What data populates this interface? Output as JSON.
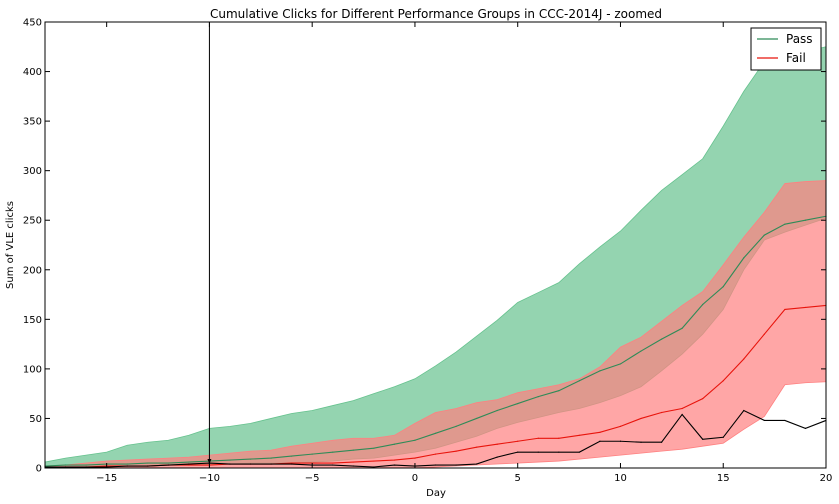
{
  "chart_data": {
    "type": "line",
    "title": "Cumulative Clicks for Different Performance Groups in CCC-2014J - zoomed",
    "xlabel": "Day",
    "ylabel": "Sum of VLE clicks",
    "xlim": [
      -18,
      20
    ],
    "ylim": [
      0,
      450
    ],
    "xticks": [
      -15,
      -10,
      -5,
      0,
      5,
      10,
      15,
      20
    ],
    "xtick_labels": [
      "−15",
      "−10",
      "−5",
      "0",
      "5",
      "10",
      "15",
      "20"
    ],
    "yticks": [
      0,
      50,
      100,
      150,
      200,
      250,
      300,
      350,
      400,
      450
    ],
    "ytick_labels": [
      "0",
      "50",
      "100",
      "150",
      "200",
      "250",
      "300",
      "350",
      "400",
      "450"
    ],
    "grid": false,
    "legend_position": "top-right",
    "vertical_line_x": -10,
    "series": [
      {
        "name": "Pass",
        "color": "#2e8b57",
        "band_color": "#66c28e",
        "x": [
          -18,
          -17,
          -16,
          -15,
          -14,
          -13,
          -12,
          -11,
          -10,
          -9,
          -8,
          -7,
          -6,
          -5,
          -4,
          -3,
          -2,
          -1,
          0,
          1,
          2,
          3,
          4,
          5,
          6,
          7,
          8,
          9,
          10,
          11,
          12,
          13,
          14,
          15,
          16,
          17,
          18,
          19,
          20
        ],
        "values": [
          2,
          3,
          3,
          4,
          4,
          5,
          5,
          6,
          7,
          8,
          9,
          10,
          12,
          14,
          16,
          18,
          20,
          24,
          28,
          35,
          42,
          50,
          58,
          65,
          72,
          78,
          88,
          98,
          105,
          118,
          130,
          141,
          165,
          183,
          212,
          235,
          246,
          250,
          254
        ],
        "upper": [
          6,
          10,
          13,
          16,
          23,
          26,
          28,
          33,
          40,
          42,
          45,
          50,
          55,
          58,
          63,
          68,
          75,
          82,
          90,
          103,
          117,
          133,
          149,
          167,
          177,
          187,
          206,
          223,
          239,
          260,
          280,
          296,
          312,
          345,
          380,
          410,
          415,
          420,
          425
        ],
        "lower": [
          0,
          0,
          1,
          1,
          2,
          2,
          3,
          3,
          4,
          4,
          5,
          5,
          5,
          6,
          7,
          9,
          10,
          13,
          16,
          20,
          26,
          32,
          40,
          46,
          51,
          56,
          60,
          66,
          73,
          82,
          98,
          115,
          135,
          160,
          200,
          230,
          238,
          245,
          252
        ]
      },
      {
        "name": "Fail",
        "color": "#e8140c",
        "band_color": "#ff8080",
        "x": [
          -18,
          -17,
          -16,
          -15,
          -14,
          -13,
          -12,
          -11,
          -10,
          -9,
          -8,
          -7,
          -6,
          -5,
          -4,
          -3,
          -2,
          -1,
          0,
          1,
          2,
          3,
          4,
          5,
          6,
          7,
          8,
          9,
          10,
          11,
          12,
          13,
          14,
          15,
          16,
          17,
          18,
          19,
          20
        ],
        "values": [
          1,
          1,
          1,
          2,
          2,
          2,
          3,
          3,
          3,
          4,
          4,
          4,
          5,
          5,
          5,
          6,
          7,
          8,
          10,
          14,
          17,
          21,
          24,
          27,
          30,
          30,
          33,
          36,
          42,
          50,
          56,
          60,
          70,
          88,
          110,
          135,
          160,
          162,
          164
        ],
        "upper": [
          2,
          3,
          5,
          7,
          8,
          9,
          10,
          11,
          13,
          15,
          17,
          18,
          22,
          25,
          28,
          30,
          30,
          33,
          45,
          56,
          60,
          66,
          69,
          76,
          80,
          84,
          90,
          102,
          122,
          132,
          148,
          164,
          178,
          205,
          233,
          258,
          287,
          289,
          290
        ],
        "lower": [
          0,
          0,
          0,
          0,
          0,
          0,
          0,
          0,
          0,
          0,
          0,
          0,
          0,
          0,
          0,
          0,
          0,
          0,
          0,
          1,
          2,
          3,
          4,
          5,
          6,
          7,
          9,
          11,
          13,
          15,
          17,
          19,
          22,
          25,
          39,
          52,
          84,
          86,
          87
        ]
      },
      {
        "name": "",
        "color": "#000000",
        "x": [
          -18,
          -17,
          -16,
          -15,
          -14,
          -13,
          -12,
          -11,
          -10,
          -9,
          -8,
          -7,
          -6,
          -5,
          -4,
          -3,
          -2,
          -1,
          0,
          1,
          2,
          3,
          4,
          5,
          6,
          7,
          8,
          9,
          10,
          11,
          12,
          13,
          14,
          15,
          16,
          17,
          18,
          19,
          20
        ],
        "values": [
          1,
          1,
          1,
          1,
          2,
          2,
          3,
          4,
          5,
          4,
          4,
          4,
          4,
          3,
          3,
          2,
          1,
          3,
          2,
          3,
          3,
          4,
          11,
          16,
          16,
          16,
          16,
          27,
          27,
          26,
          26,
          54,
          29,
          31,
          58,
          48,
          48,
          40,
          48
        ]
      }
    ]
  },
  "legend": {
    "pass_label": "Pass",
    "fail_label": "Fail"
  }
}
